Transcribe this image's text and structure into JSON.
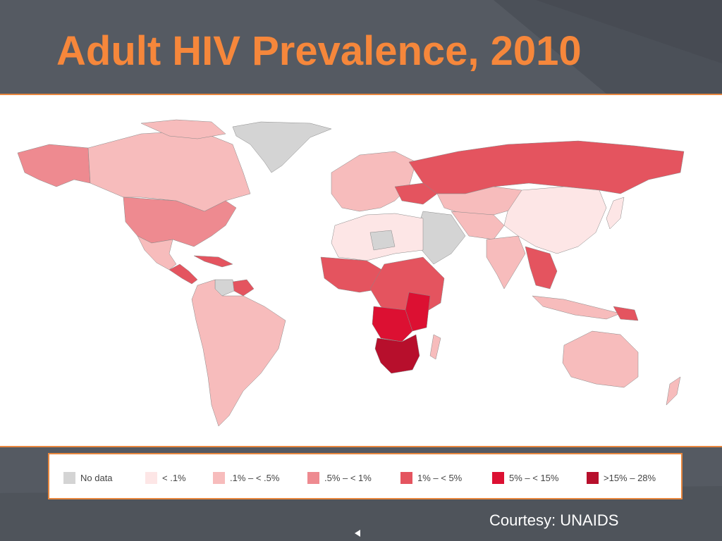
{
  "slide": {
    "title": "Adult HIV Prevalence, 2010",
    "courtesy": "Courtesy: UNAIDS"
  },
  "legend": [
    {
      "label": "No data",
      "color": "#d4d4d4"
    },
    {
      "label": "< .1%",
      "color": "#fde6e6"
    },
    {
      "label": ".1% – < .5%",
      "color": "#f7bcbc"
    },
    {
      "label": ".5% – < 1%",
      "color": "#ee8a90"
    },
    {
      "label": "1% – < 5%",
      "color": "#e4545f"
    },
    {
      "label": "5% – < 15%",
      "color": "#dc1032"
    },
    {
      "label": ">15% – 28%",
      "color": "#b70f2c"
    }
  ],
  "colors": {
    "background": "#555a62",
    "accent": "#f6873b",
    "frame_border": "#e8873f",
    "map_background": "#ffffff"
  },
  "icons": {
    "prev_slide": "triangle-left-icon"
  }
}
